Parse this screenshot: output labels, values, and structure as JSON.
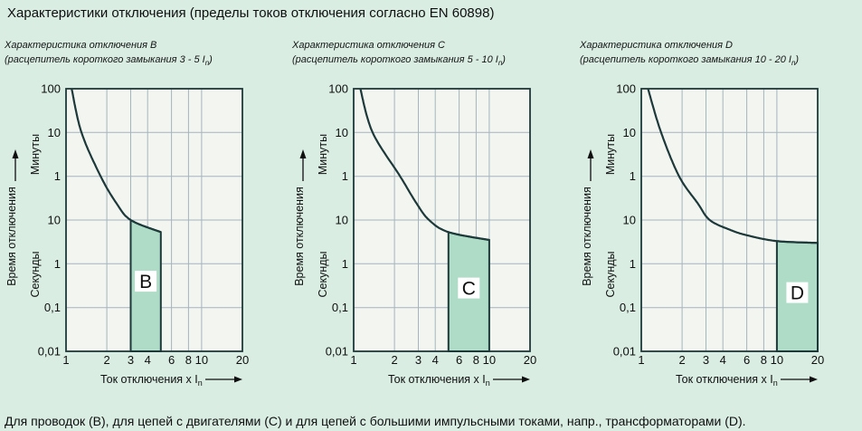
{
  "page": {
    "title": "Характеристики отключения (пределы токов отключения согласно EN 60898)",
    "caption": "Для проводок (B), для цепей с двигателями (C) и для цепей с большими импульсными токами, напр., трансформаторами (D)."
  },
  "colors": {
    "page_bg": "#d9ede3",
    "plot_bg": "#f3f5f0",
    "grid": "#a5b4bd",
    "stroke": "#1d393a",
    "region_fill": "#aedcc6",
    "text": "#0f0f0f",
    "letter_box": "#ffffff"
  },
  "axes": {
    "x_axis_label_prefix": "Ток отключения x I",
    "x_axis_label_sub": "n",
    "y_axis_label": "Время отключения",
    "y_unit_top": "Минуты",
    "y_unit_bottom": "Секунды",
    "x_scale": "log",
    "x_min": 1,
    "x_max": 20,
    "x_tick_labels": [
      "1",
      "2",
      "3",
      "4",
      "6",
      "8",
      "10",
      "20"
    ],
    "x_tick_values": [
      1,
      2,
      3,
      4,
      6,
      8,
      10,
      20
    ],
    "y_tick_labels": [
      "100",
      "10",
      "1",
      "10",
      "1",
      "0,1",
      "0,01"
    ],
    "y_tick_seconds": [
      6000,
      600,
      60,
      10,
      1,
      0.1,
      0.01
    ],
    "grid": true
  },
  "chart_data": [
    {
      "type": "line",
      "letter": "B",
      "title": "Характеристика отключения B",
      "subtitle_prefix": "(расцепитель короткого замыкания 3 - 5 I",
      "subtitle_sub": "n",
      "subtitle_suffix": ")",
      "trip_range": [
        3,
        5
      ],
      "label_t_s": 0.4,
      "curve_points": [
        [
          1.1,
          6000
        ],
        [
          1.3,
          600
        ],
        [
          1.8,
          60
        ],
        [
          2.35,
          20
        ],
        [
          3,
          10
        ],
        [
          5,
          5.3
        ]
      ]
    },
    {
      "type": "line",
      "letter": "C",
      "title": "Характеристика отключения C",
      "subtitle_prefix": "(расцепитель короткого замыкания 5 - 10 I",
      "subtitle_sub": "n",
      "subtitle_suffix": ")",
      "trip_range": [
        5,
        10
      ],
      "label_t_s": 0.28,
      "curve_points": [
        [
          1.12,
          6000
        ],
        [
          1.38,
          600
        ],
        [
          2.2,
          60
        ],
        [
          2.9,
          20
        ],
        [
          3.6,
          10
        ],
        [
          5,
          5.3
        ],
        [
          10,
          3.5
        ]
      ]
    },
    {
      "type": "line",
      "letter": "D",
      "title": "Характеристика отключения D",
      "subtitle_prefix": "(расцепитель короткого замыкания 10 - 20 I",
      "subtitle_sub": "n",
      "subtitle_suffix": ")",
      "trip_range": [
        10,
        20
      ],
      "label_t_s": 0.22,
      "curve_points": [
        [
          1.12,
          6000
        ],
        [
          1.4,
          600
        ],
        [
          1.9,
          60
        ],
        [
          2.6,
          20
        ],
        [
          3.2,
          10
        ],
        [
          4.5,
          6
        ],
        [
          6,
          4.5
        ],
        [
          10,
          3.3
        ],
        [
          20,
          3.0
        ]
      ]
    }
  ]
}
